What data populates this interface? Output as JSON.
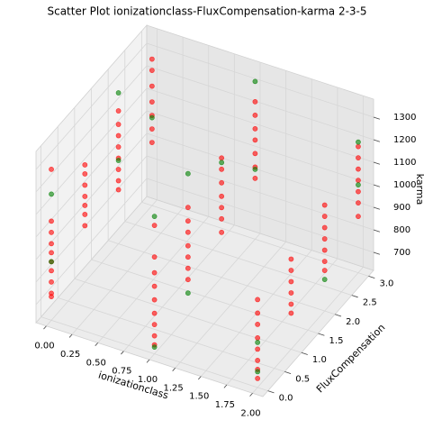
{
  "chart_data": {
    "type": "scatter3d",
    "title": "Scatter Plot  ionizationclass-FluxCompensation-karma  2-3-5",
    "xlabel": "ionizationclass",
    "ylabel": "FluxCompensation",
    "zlabel": "karma",
    "xlim": [
      -0.1,
      2.1
    ],
    "ylim": [
      -0.15,
      3.15
    ],
    "zlim": [
      620,
      1380
    ],
    "xticks": [
      {
        "value": 0,
        "label": "0.00"
      },
      {
        "value": 0.25,
        "label": "0.25"
      },
      {
        "value": 0.5,
        "label": "0.50"
      },
      {
        "value": 0.75,
        "label": "0.75"
      },
      {
        "value": 1,
        "label": "1.00"
      },
      {
        "value": 1.25,
        "label": "1.25"
      },
      {
        "value": 1.5,
        "label": "1.50"
      },
      {
        "value": 1.75,
        "label": "1.75"
      },
      {
        "value": 2,
        "label": "2.00"
      }
    ],
    "yticks": [
      {
        "value": 0,
        "label": "0.0"
      },
      {
        "value": 0.5,
        "label": "0.5"
      },
      {
        "value": 1,
        "label": "1.0"
      },
      {
        "value": 1.5,
        "label": "1.5"
      },
      {
        "value": 2,
        "label": "2.0"
      },
      {
        "value": 2.5,
        "label": "2.5"
      },
      {
        "value": 3,
        "label": "3.0"
      }
    ],
    "zticks": [
      700,
      800,
      900,
      1000,
      1100,
      1200,
      1300
    ],
    "grid": true,
    "series": [
      {
        "color": "#ff0000",
        "x": [
          0,
          0,
          0,
          0,
          0,
          0,
          0,
          0,
          0,
          0,
          0,
          0,
          0,
          0,
          0,
          0,
          0,
          0,
          0,
          0,
          0,
          0,
          0,
          0,
          0,
          0,
          0,
          0,
          0,
          0,
          0,
          0,
          1,
          1,
          1,
          1,
          1,
          1,
          1,
          1,
          1,
          1,
          1,
          1,
          1,
          1,
          1,
          1,
          1,
          1,
          1,
          1,
          1,
          1,
          1,
          1,
          1,
          1,
          1,
          1,
          1,
          1,
          2,
          2,
          2,
          2,
          2,
          2,
          2,
          2,
          2,
          2,
          2,
          2,
          2,
          2,
          2,
          2,
          2,
          2,
          2,
          2,
          2,
          2,
          2,
          2,
          2,
          2,
          2,
          2
        ],
        "y": [
          0,
          0,
          0,
          0,
          0,
          0,
          0,
          0,
          0,
          0,
          1,
          1,
          1,
          1,
          1,
          1,
          1,
          2,
          2,
          2,
          2,
          2,
          2,
          2,
          2,
          3,
          3,
          3,
          3,
          3,
          3,
          3,
          0,
          0,
          0,
          0,
          0,
          0,
          0,
          0,
          0,
          1,
          1,
          1,
          1,
          1,
          1,
          1,
          2,
          2,
          2,
          2,
          2,
          2,
          2,
          3,
          3,
          3,
          3,
          3,
          3,
          3,
          0,
          0,
          0,
          0,
          0,
          0,
          0,
          0,
          1,
          1,
          1,
          1,
          1,
          1,
          2,
          2,
          2,
          2,
          2,
          2,
          2,
          3,
          3,
          3,
          3,
          3,
          3,
          3
        ],
        "z": [
          1290,
          1060,
          1010,
          960,
          920,
          880,
          840,
          790,
          740,
          725,
          1140,
          1100,
          1050,
          1000,
          960,
          920,
          870,
          1210,
          1150,
          1100,
          1050,
          1000,
          950,
          900,
          860,
          1270,
          1220,
          1150,
          1080,
          1020,
          960,
          900,
          1190,
          1050,
          980,
          920,
          860,
          800,
          750,
          700,
          660,
          1100,
          1040,
          990,
          930,
          880,
          830,
          780,
          1150,
          1100,
          1040,
          980,
          930,
          880,
          820,
          1230,
          1170,
          1110,
          1060,
          1000,
          940,
          890,
          1010,
          950,
          900,
          840,
          790,
          740,
          700,
          660,
          1020,
          970,
          920,
          870,
          820,
          780,
          1090,
          1040,
          990,
          940,
          890,
          840,
          800,
          1180,
          1130,
          1080,
          1030,
          980,
          930,
          870
        ]
      },
      {
        "color": "#008000",
        "x": [
          0,
          0,
          0,
          0,
          0,
          1,
          1,
          1,
          1,
          1,
          1,
          1,
          2,
          2,
          2,
          2,
          2
        ],
        "y": [
          0,
          0,
          2,
          2,
          3,
          0,
          0,
          1,
          1,
          2,
          3,
          3,
          0,
          0,
          2,
          3,
          3
        ],
        "z": [
          1180,
          880,
          1290,
          990,
          1010,
          1230,
          650,
          1250,
          720,
          1130,
          1320,
          930,
          690,
          820,
          760,
          1200,
          1010
        ]
      }
    ]
  }
}
